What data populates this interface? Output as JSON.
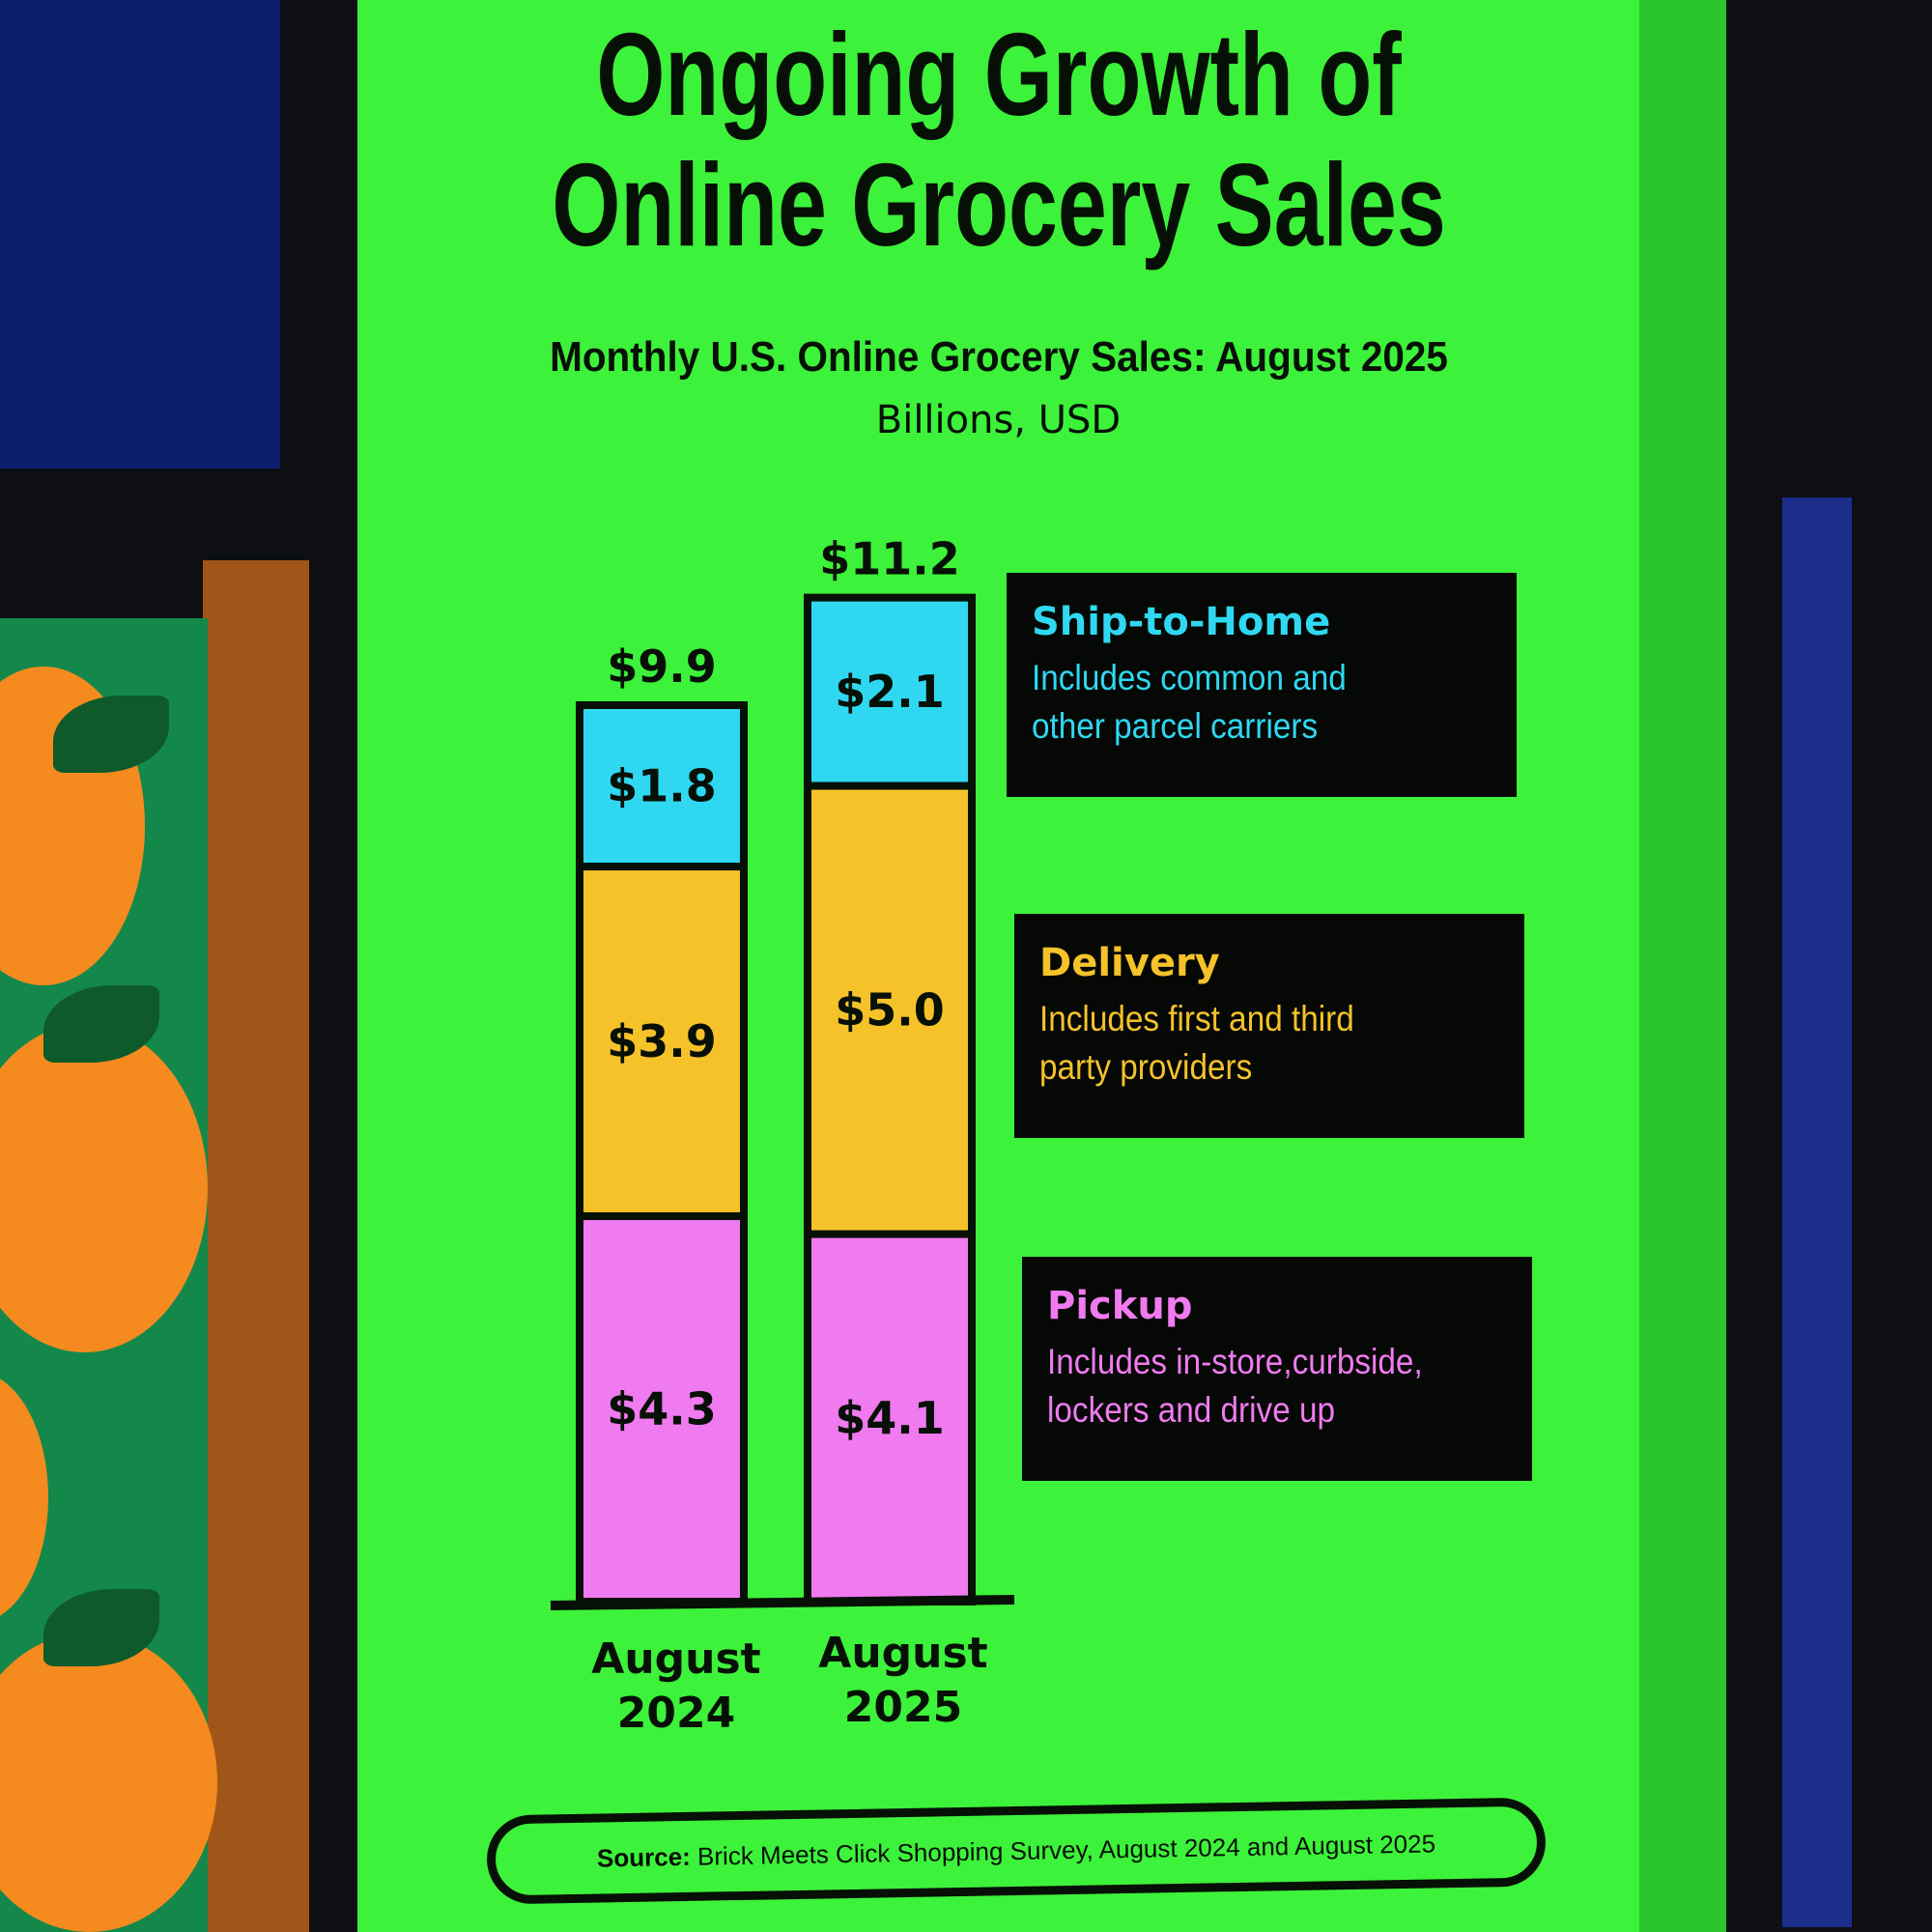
{
  "chart_data": {
    "type": "bar",
    "stacked": true,
    "title": "Ongoing Growth of Online Grocery Sales",
    "title_lines": [
      "Ongoing Growth of",
      "Online Grocery Sales"
    ],
    "subtitle": "Monthly U.S. Online Grocery Sales: August 2025",
    "units": "Billions, USD",
    "categories": [
      "August 2024",
      "August 2025"
    ],
    "category_lines": [
      [
        "August",
        "2024"
      ],
      [
        "August",
        "2025"
      ]
    ],
    "totals": [
      9.9,
      11.2
    ],
    "total_labels": [
      "$9.9",
      "$11.2"
    ],
    "series": [
      {
        "name": "Pickup",
        "values": [
          4.3,
          4.1
        ],
        "labels": [
          "$4.3",
          "$4.1"
        ],
        "color": "#f07af0"
      },
      {
        "name": "Delivery",
        "values": [
          3.9,
          5.0
        ],
        "labels": [
          "$3.9",
          "$5.0"
        ],
        "color": "#f5c22a"
      },
      {
        "name": "Ship-to-Home",
        "values": [
          1.8,
          2.1
        ],
        "labels": [
          "$1.8",
          "$2.1"
        ],
        "color": "#2fd8f0"
      }
    ],
    "ylim": [
      0,
      11.2
    ],
    "grid": false,
    "legend": [
      {
        "name": "Ship-to-Home",
        "desc": [
          "Includes common and",
          "other parcel carriers"
        ],
        "color": "#2fd8f0"
      },
      {
        "name": "Delivery",
        "desc": [
          "Includes first and third",
          "party providers"
        ],
        "color": "#f5c22a"
      },
      {
        "name": "Pickup",
        "desc": [
          "Includes in-store,curbside,",
          "lockers and drive up"
        ],
        "color": "#f07af0"
      }
    ],
    "source_label": "Source:",
    "source": "Brick Meets Click Shopping Survey, August 2024 and August 2025"
  }
}
